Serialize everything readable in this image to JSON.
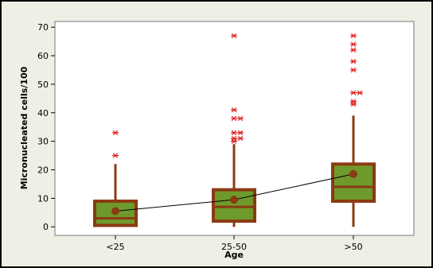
{
  "chart_data": {
    "type": "boxplot",
    "xlabel": "Age",
    "ylabel": "Micronucleated cells/100",
    "categories": [
      "<25",
      "25-50",
      ">50"
    ],
    "yticks": [
      0,
      10,
      20,
      30,
      40,
      50,
      60,
      70
    ],
    "ylim": [
      -3,
      72
    ],
    "boxes": [
      {
        "category": "<25",
        "min": 0,
        "q1": 0.5,
        "median": 3,
        "q3": 9,
        "whisker_high": 22,
        "mean": 5.5,
        "outliers": [
          25,
          33
        ]
      },
      {
        "category": "25-50",
        "min": 0,
        "q1": 2,
        "median": 7,
        "q3": 13,
        "whisker_high": 29,
        "mean": 9.5,
        "outliers": [
          30,
          31,
          31,
          33,
          33,
          38,
          38,
          41,
          67
        ]
      },
      {
        "category": ">50",
        "min": 0,
        "q1": 9,
        "median": 14,
        "q3": 22,
        "whisker_high": 39,
        "mean": 18.5,
        "outliers": [
          43,
          44,
          47,
          47,
          55,
          58,
          62,
          64,
          67
        ]
      }
    ],
    "mean_connect_line": true,
    "colors": {
      "box_fill": "#6e9a2c",
      "box_stroke": "#8b3a12",
      "mean_dot": "#8b3a12",
      "outlier": "#e0201e",
      "plot_bg": "#ffffff",
      "outer_bg": "#f0efe6"
    }
  }
}
